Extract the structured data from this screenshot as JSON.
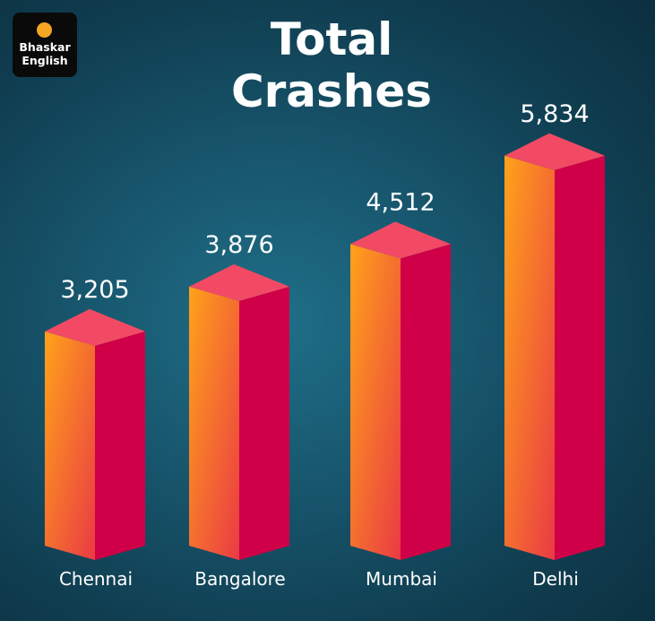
{
  "brand": {
    "line1": "Bhaskar",
    "line2": "English"
  },
  "title_line1": "Total",
  "title_line2": "Crashes",
  "colors": {
    "front_light": "#ffa21a",
    "front_dark": "#ea3a44",
    "side": "#cf0047",
    "top": "#f24a64",
    "logo_dot": "#f5a623",
    "text": "#ffffff"
  },
  "chart_data": {
    "type": "bar",
    "title": "Total Crashes",
    "categories": [
      "Chennai",
      "Bangalore",
      "Mumbai",
      "Delhi"
    ],
    "values": [
      3205,
      3876,
      4512,
      5834
    ],
    "value_labels": [
      "3,205",
      "3,876",
      "4,512",
      "5,834"
    ],
    "xlabel": "",
    "ylabel": "",
    "grid": false,
    "legend": "none"
  }
}
